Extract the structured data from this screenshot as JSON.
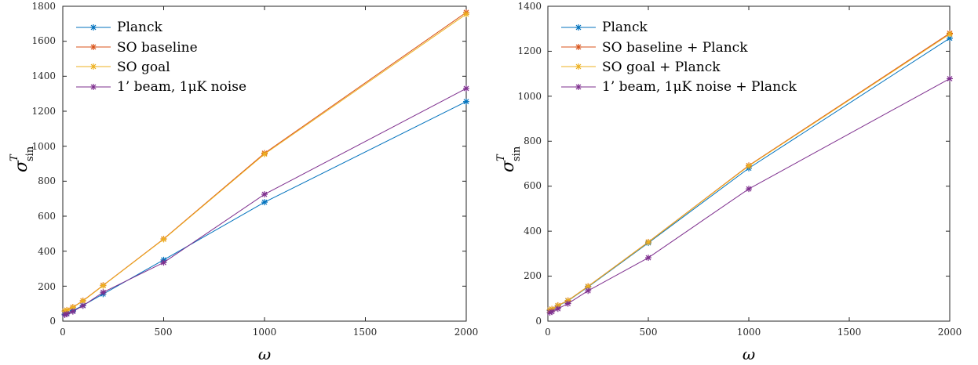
{
  "chart_data": [
    {
      "type": "line",
      "title": "",
      "xlabel": "ω",
      "ylabel": {
        "base": "σ",
        "sup": "T",
        "sub": "sin"
      },
      "xlim": [
        0,
        2000
      ],
      "ylim": [
        0,
        1800
      ],
      "xticks": [
        0,
        500,
        1000,
        1500,
        2000
      ],
      "yticks": [
        0,
        200,
        400,
        600,
        800,
        1000,
        1200,
        1400,
        1600,
        1800
      ],
      "grid": false,
      "legend_position": "top-left",
      "x": [
        10,
        20,
        50,
        100,
        200,
        500,
        1000,
        2000
      ],
      "series": [
        {
          "name": "Planck",
          "color": "#0072BD",
          "marker": "asterisk",
          "values": [
            40,
            44,
            60,
            90,
            155,
            350,
            680,
            1255
          ]
        },
        {
          "name": "SO baseline",
          "color": "#D95319",
          "marker": "asterisk",
          "values": [
            58,
            63,
            80,
            117,
            205,
            470,
            960,
            1765
          ]
        },
        {
          "name": "SO goal",
          "color": "#EDB120",
          "marker": "asterisk",
          "values": [
            57,
            62,
            78,
            115,
            203,
            468,
            955,
            1755
          ]
        },
        {
          "name": "1’ beam, 1μK noise",
          "color": "#7E2F8E",
          "marker": "asterisk",
          "values": [
            36,
            41,
            55,
            88,
            165,
            335,
            725,
            1330
          ]
        }
      ]
    },
    {
      "type": "line",
      "title": "",
      "xlabel": "ω",
      "ylabel": {
        "base": "σ",
        "sup": "T",
        "sub": "sin"
      },
      "xlim": [
        0,
        2000
      ],
      "ylim": [
        0,
        1400
      ],
      "xticks": [
        0,
        500,
        1000,
        1500,
        2000
      ],
      "yticks": [
        0,
        200,
        400,
        600,
        800,
        1000,
        1200,
        1400
      ],
      "grid": false,
      "legend_position": "top-left",
      "x": [
        10,
        20,
        50,
        100,
        200,
        500,
        1000,
        2000
      ],
      "series": [
        {
          "name": "Planck",
          "color": "#0072BD",
          "marker": "asterisk",
          "values": [
            47,
            52,
            68,
            90,
            152,
            348,
            680,
            1258
          ]
        },
        {
          "name": "SO baseline + Planck",
          "color": "#D95319",
          "marker": "asterisk",
          "values": [
            50,
            54,
            70,
            92,
            155,
            352,
            692,
            1280
          ]
        },
        {
          "name": "SO goal + Planck",
          "color": "#EDB120",
          "marker": "asterisk",
          "values": [
            49,
            53,
            69,
            91,
            154,
            351,
            690,
            1276
          ]
        },
        {
          "name": "1’ beam, 1μK noise + Planck",
          "color": "#7E2F8E",
          "marker": "asterisk",
          "values": [
            38,
            42,
            55,
            78,
            135,
            282,
            588,
            1078
          ]
        }
      ]
    }
  ]
}
